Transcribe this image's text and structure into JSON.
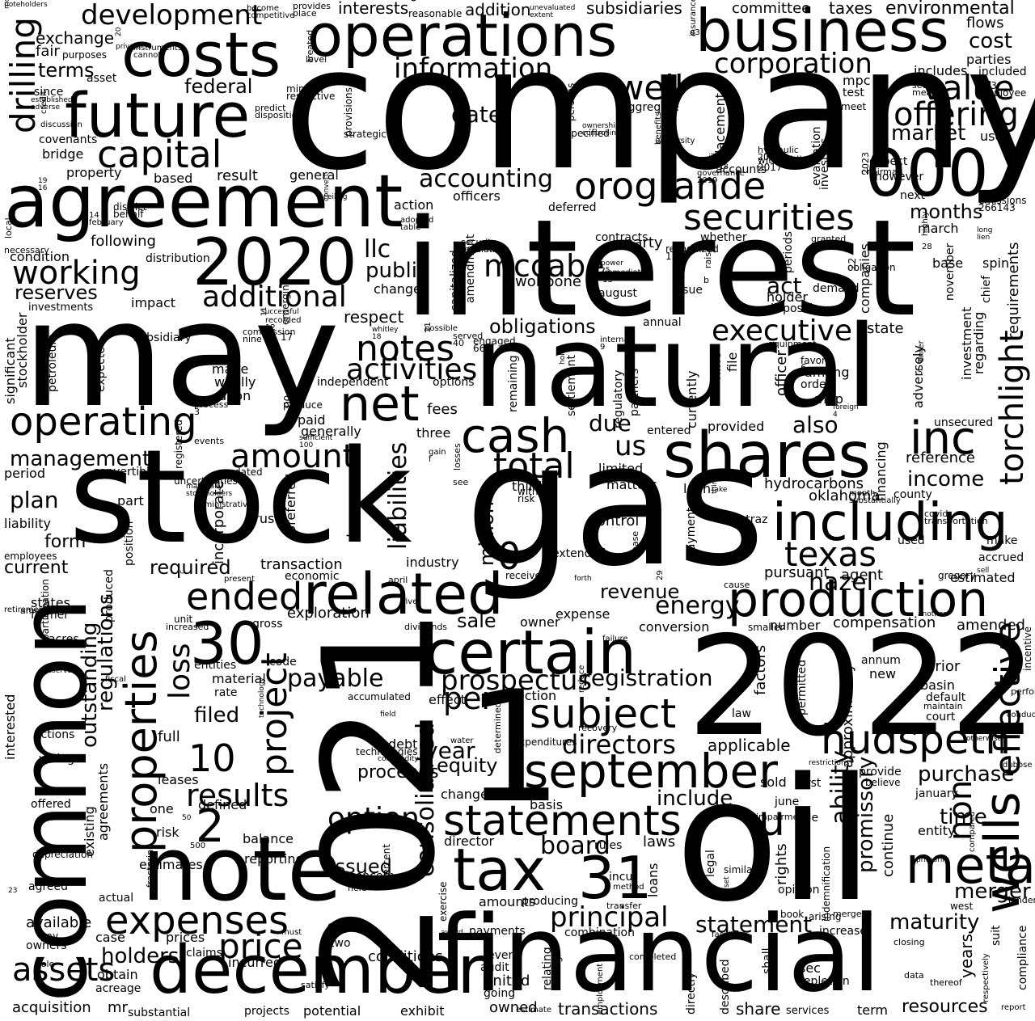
{
  "colors": {
    "background": "#ffffff",
    "text": "#000000"
  },
  "words": {
    "company": "company",
    "interest": "interest",
    "may": "may",
    "stock": "stock",
    "gas": "gas",
    "natural": "natural",
    "y2022": "2022",
    "y2021": "2021",
    "oil": "oil",
    "common": "common",
    "financial": "financial",
    "agreement": "agreement",
    "operations": "operations",
    "business": "business",
    "costs": "costs",
    "future": "future",
    "n000": "000",
    "y2020": "2020",
    "note": "note",
    "december": "december",
    "certain": "certain",
    "related": "related",
    "shares": "shares",
    "production": "production",
    "including": "including",
    "n1": "1",
    "n31": "31",
    "tax": "tax",
    "september": "september",
    "operating": "operating",
    "net": "net",
    "cash": "cash",
    "securities": "securities",
    "orogrande": "orogrande",
    "capital": "capital",
    "expenses": "expenses",
    "statements": "statements",
    "properties": "properties",
    "project": "project",
    "meta": "meta",
    "hudspeth": "hudspeth",
    "inc": "inc",
    "subject": "subject",
    "n30": "30",
    "price": "price",
    "notes": "notes",
    "ended": "ended",
    "total": "total",
    "information": "information",
    "working": "working",
    "development": "development",
    "value": "value",
    "offering": "offering",
    "well": "well",
    "corporation": "corporation",
    "texas": "texas",
    "torchlight": "torchlight",
    "executive": "executive",
    "prospectus": "prospectus",
    "principal": "principal",
    "directors": "directors",
    "amount": "amount",
    "additional": "additional",
    "accounting": "accounting",
    "drilling": "drilling",
    "mccabe": "mccabe",
    "option": "option",
    "activities": "activities",
    "assets": "assets",
    "results": "results",
    "wells": "wells",
    "effective": "effective",
    "registration": "registration",
    "payable": "payable",
    "statement": "statement",
    "purchase": "purchase",
    "board": "board",
    "merger": "merger",
    "maturity": "maturity",
    "loss": "loss",
    "outstanding": "outstanding",
    "regulations": "regulations",
    "consolidated": "consolidated",
    "liabilities": "liabilities",
    "million": "million",
    "n10": "10",
    "n2": "2",
    "n0": "0",
    "u": "u",
    "non": "non",
    "us": "us",
    "hazel": "hazel",
    "income": "income",
    "energy": "energy",
    "revenue": "revenue",
    "obligations": "obligations",
    "management": "management",
    "plan": "plan",
    "llc": "llc",
    "public": "public",
    "wolfbone": "wolfbone",
    "securities2": "applicable",
    "months": "months",
    "market": "market",
    "federal": "federal",
    "terms": "terms",
    "exchange": "exchange",
    "fair": "fair",
    "date": "date",
    "act": "act",
    "also": "also",
    "due": "due",
    "per": "per",
    "year": "year",
    "equity": "equity",
    "sale": "sale",
    "filed": "filed",
    "include": "include",
    "time": "time",
    "ability": "ability",
    "promissory": "promissory",
    "reserves": "reserves",
    "form": "form",
    "current": "current",
    "required": "required",
    "holders": "holders",
    "issued": "issued",
    "proceeds": "proceeds",
    "interests": "interests",
    "addition": "addition",
    "subsidiaries": "subsidiaries",
    "committee": "committee",
    "taxes": "taxes",
    "environmental": "environmental",
    "flows": "flows",
    "cost": "cost",
    "parties": "parties",
    "includes": "includes",
    "included": "included",
    "approximately": "approximately",
    "years": "years",
    "resources": "resources",
    "transactions": "transactions",
    "share": "share",
    "owned": "owned",
    "united": "united",
    "exhibit": "exhibit",
    "conditions": "conditions",
    "incurred": "incurred",
    "prices": "prices",
    "case": "case",
    "available": "available",
    "acquisition": "acquisition",
    "substantial": "substantial",
    "projects": "projects",
    "potential": "potential",
    "obtain": "obtain",
    "acreage": "acreage",
    "amended": "amended",
    "compensation": "compensation",
    "estimated": "estimated",
    "pursuant": "pursuant",
    "agent": "agent",
    "accrued": "accrued",
    "oklahoma": "oklahoma",
    "hydrocarbons": "hydrocarbons",
    "loan": "loan",
    "control": "control",
    "industry": "industry",
    "transaction": "transaction",
    "economic": "economic",
    "trust": "trust",
    "liability": "liability",
    "employees": "employees",
    "period": "period",
    "convertible": "convertible",
    "condition": "condition",
    "following": "following",
    "property": "property",
    "based": "based",
    "result": "result",
    "general": "general",
    "bridge": "bridge",
    "covenants": "covenants",
    "since": "since",
    "asset": "asset",
    "purposes": "purposes",
    "officers": "officers",
    "action": "action",
    "party": "party",
    "change": "change",
    "respect": "respect",
    "impact": "impact",
    "distribution": "distribution",
    "investments": "investments",
    "subsidiary": "subsidiary",
    "significant": "significant",
    "stockholder": "stockholder",
    "petroleum": "petroleum",
    "expected": "expected",
    "made": "made",
    "wholly": "wholly",
    "upon": "upon",
    "paid": "paid",
    "generally": "generally",
    "fees": "fees",
    "three": "three",
    "independent": "independent",
    "options": "options",
    "gross": "gross",
    "exploration": "exploration",
    "owner": "owner",
    "expense": "expense",
    "conversion": "conversion",
    "risks": "risks",
    "material": "material",
    "rate": "rate",
    "entities": "entities",
    "code": "code",
    "connection": "connection",
    "effect": "effect",
    "debt": "debt",
    "changes": "changes",
    "basis": "basis",
    "director": "director",
    "amounts": "amounts",
    "producing": "producing",
    "payments": "payments",
    "combination": "combination",
    "event": "event",
    "audit": "audit",
    "laws": "laws",
    "rules": "rules",
    "loans": "loans",
    "reporting": "reporting",
    "balance": "balance",
    "estimates": "estimates",
    "risk": "risk",
    "defined": "defined",
    "one": "one",
    "leases": "leases",
    "full": "full",
    "states": "states",
    "former": "former",
    "acres": "acres",
    "interested": "interested",
    "actions": "actions",
    "voting": "voting",
    "offered": "offered",
    "agreed": "agreed",
    "actual": "actual",
    "owners": "owners",
    "pay": "pay",
    "existing": "existing",
    "agreements": "agreements",
    "produced": "produced",
    "position": "position",
    "part": "part",
    "incorporated": "incorporated",
    "preferred": "preferred",
    "less": "less",
    "limited": "limited",
    "matters": "matters",
    "third": "third",
    "payment": "payment",
    "straz": "straz",
    "county": "county",
    "reference": "reference",
    "financing": "financing",
    "investment": "investment",
    "regarding": "regarding",
    "requirements": "requirements",
    "chief": "chief",
    "spin": "spin",
    "base": "base",
    "november": "november",
    "march": "march",
    "next": "next",
    "expect": "expect",
    "however": "however",
    "use": "use",
    "test": "test",
    "mpc": "mpc",
    "meet": "meet",
    "evaluation": "evaluation",
    "investors": "investors",
    "placement": "placement",
    "accounts": "accounts",
    "aggregate": "aggregate",
    "deferred": "deferred",
    "amendment": "amendment",
    "capitalized": "capitalized",
    "contracts": "contracts",
    "whether": "whether",
    "periods": "periods",
    "companies": "companies",
    "demand": "demand",
    "disposal": "disposal",
    "holder": "holder",
    "state": "state",
    "among": "among",
    "order": "order",
    "mhp": "mhp",
    "adversely": "adversely",
    "officer": "officer",
    "nine": "nine",
    "file": "file",
    "currently": "currently",
    "provided": "provided",
    "entered": "entered",
    "regulatory": "regulatory",
    "partners": "partners",
    "annual": "annual",
    "august": "august",
    "issue": "issue",
    "settlement": "settlement",
    "remaining": "remaining",
    "unsecured": "unsecured",
    "used": "used",
    "make": "make",
    "extended": "extended",
    "number": "number",
    "factors": "factors",
    "permitted": "permitted",
    "annum": "annum",
    "new": "new",
    "prior": "prior",
    "basin": "basin",
    "default": "default",
    "maintain": "maintain",
    "court": "court",
    "law": "law",
    "provide": "provide",
    "believe": "believe",
    "sold": "sold",
    "first": "first",
    "june": "june",
    "rule": "rule",
    "january": "january",
    "entity": "entity",
    "continue": "continue",
    "rights": "rights",
    "indemnification": "indemnification",
    "increase": "increase",
    "opinion": "opinion",
    "legal": "legal",
    "sec": "sec",
    "depletion": "depletion",
    "term": "term",
    "services": "services",
    "shall": "shall",
    "described": "described",
    "directly": "directly",
    "completed": "completed",
    "employment": "employment",
    "compliance": "compliance",
    "suit": "suit",
    "closing": "closing",
    "data": "data",
    "respectively": "respectively",
    "thereof": "thereof",
    "report": "report",
    "estimate": "estimate",
    "relating": "relating",
    "average": "average",
    "going": "going",
    "exercise": "exercise",
    "concern": "concern",
    "incur": "incur",
    "equal": "equal",
    "two": "two",
    "claims": "claims",
    "satisfy": "satisfy",
    "must": "must",
    "sole": "sole",
    "mr": "mr"
  },
  "small_words": [
    "noteholders",
    "become",
    "provides",
    "cordax",
    "unevaluated",
    "q3",
    "section",
    "333",
    "20",
    "instruments",
    "level",
    "mineral",
    "established",
    "credit",
    "predict",
    "strategic",
    "19",
    "14",
    "local",
    "district",
    "ceiling",
    "adopted",
    "security",
    "persons",
    "ownership",
    "university",
    "hydraulic",
    "withholding",
    "ii",
    "governance",
    "chairman",
    "emissions",
    "long",
    "highly",
    "granted",
    "obligation",
    "power",
    "immediately",
    "raise",
    "recognized",
    "successful",
    "recorded",
    "commission",
    "emerging",
    "whitley",
    "possible",
    "served",
    "engaged",
    "hold",
    "internal",
    "equipment",
    "favor",
    "foreign",
    "enter",
    "process",
    "produce",
    "sufficient",
    "gain",
    "losses",
    "without",
    "take",
    "month",
    "covid",
    "registered",
    "materially",
    "administrative",
    "events",
    "dated",
    "c",
    "present",
    "april",
    "received",
    "forth",
    "29",
    "cause",
    "gregory",
    "sell",
    "failure",
    "lease",
    "smaller",
    "another",
    "retirement",
    "amendments",
    "participation",
    "reserve",
    "fiscal",
    "increased",
    "unit",
    "technology",
    "five",
    "dividends",
    "accumulated",
    "field",
    "reduce",
    "recovery",
    "technologies",
    "commodity",
    "water",
    "determined",
    "expenditures",
    "restrictions",
    "conduct",
    "performance",
    "incentive",
    "otherwise",
    "dubose",
    "impairment",
    "similar",
    "set",
    "method",
    "transfer",
    "arising",
    "primarily",
    "compared",
    "lender",
    "west",
    "50",
    "500",
    "fracturing",
    "depreciation",
    "23",
    "amortized",
    "held",
    "percent",
    "award",
    "facilities",
    "mergeco",
    "book",
    "mcf",
    "competitive",
    "place",
    "reasonable",
    "extent",
    "insurance",
    "means",
    "employee",
    "private",
    "cannot",
    "treated",
    "restrictive",
    "adverse",
    "discussion",
    "disposition",
    "provisions",
    "16",
    "february",
    "necessary",
    "behalf",
    "convert",
    "table",
    "regulation",
    "specified",
    "controlling",
    "benefits",
    "2016",
    "2017",
    "2018",
    "2019",
    "2023",
    "266143",
    "lien",
    "28",
    "27",
    "22",
    "25",
    "13",
    "b",
    "15",
    "11",
    "12",
    "nine",
    "17",
    "18",
    "21",
    "40",
    "66",
    "7",
    "9",
    "8",
    "6",
    "4",
    "5",
    "3",
    "00",
    "100",
    "f",
    "see",
    "risk",
    "things",
    "substantially",
    "transportation",
    "uncertainties",
    "stockholders"
  ]
}
